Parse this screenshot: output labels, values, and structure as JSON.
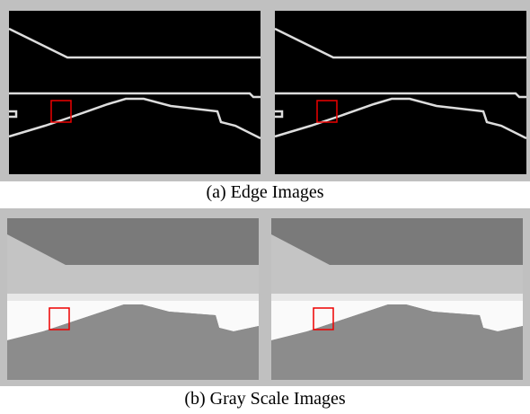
{
  "figure": {
    "panels": [
      {
        "caption": "(a) Edge Images"
      },
      {
        "caption": "(b) Gray Scale Images"
      }
    ]
  }
}
